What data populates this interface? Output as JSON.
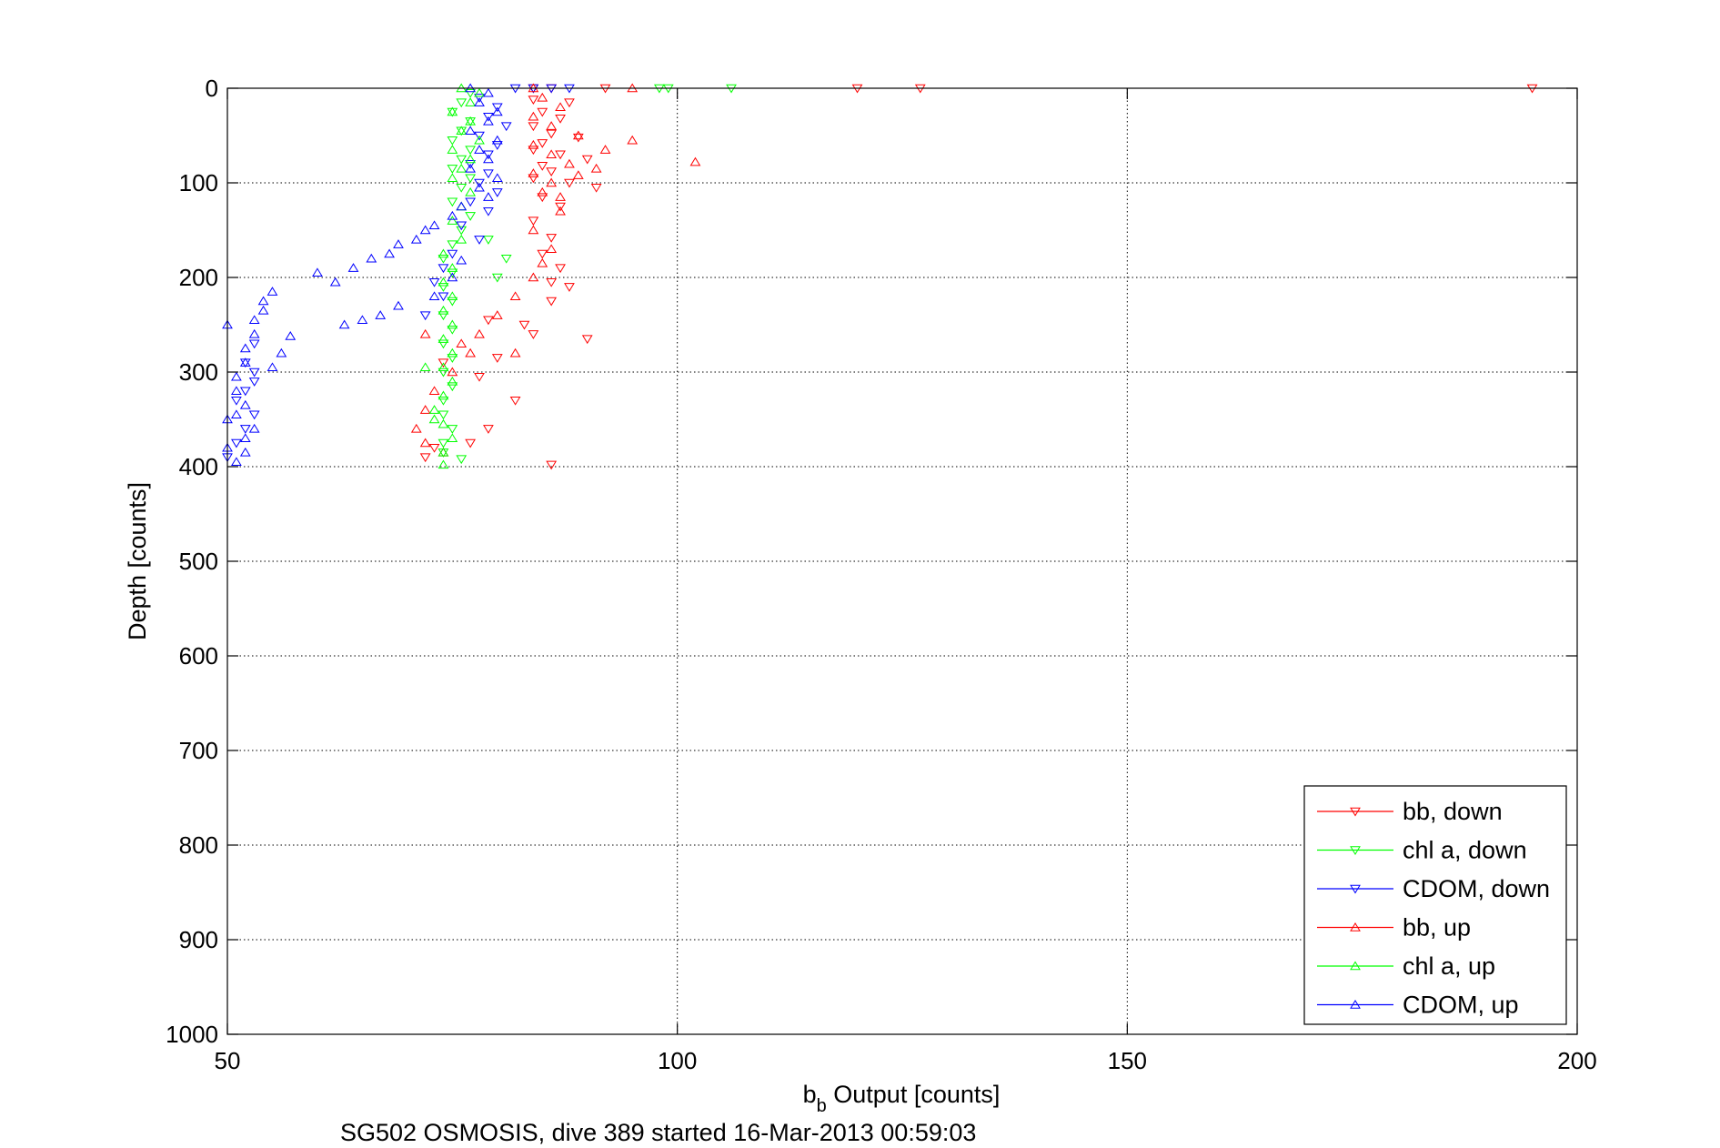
{
  "chart_data": {
    "type": "scatter",
    "title": "",
    "xlabel": "b",
    "xlabel_sub": "b",
    "xlabel_rest": " Output [counts]",
    "ylabel": "Depth [counts]",
    "caption": "SG502 OSMOSIS, dive 389 started 16-Mar-2013 00:59:03",
    "xlim": [
      50,
      200
    ],
    "ylim": [
      0,
      1000
    ],
    "y_reversed": true,
    "x_ticks": [
      "50",
      "100",
      "150",
      "200"
    ],
    "y_ticks": [
      "0",
      "100",
      "200",
      "300",
      "400",
      "500",
      "600",
      "700",
      "800",
      "900",
      "1000"
    ],
    "grid": true,
    "legend_position": "bottom-right",
    "series": [
      {
        "name": "bb, down",
        "color": "#ff0000",
        "marker": "triangle-down",
        "points": [
          [
            84,
            0
          ],
          [
            86,
            0
          ],
          [
            92,
            0
          ],
          [
            120,
            0
          ],
          [
            127,
            0
          ],
          [
            195,
            0
          ],
          [
            84,
            12
          ],
          [
            88,
            15
          ],
          [
            85,
            25
          ],
          [
            87,
            32
          ],
          [
            84,
            40
          ],
          [
            86,
            48
          ],
          [
            89,
            52
          ],
          [
            85,
            58
          ],
          [
            84,
            65
          ],
          [
            87,
            70
          ],
          [
            90,
            75
          ],
          [
            85,
            82
          ],
          [
            86,
            88
          ],
          [
            84,
            95
          ],
          [
            88,
            100
          ],
          [
            91,
            105
          ],
          [
            85,
            115
          ],
          [
            87,
            125
          ],
          [
            84,
            140
          ],
          [
            86,
            158
          ],
          [
            85,
            175
          ],
          [
            87,
            190
          ],
          [
            86,
            205
          ],
          [
            88,
            210
          ],
          [
            86,
            225
          ],
          [
            84,
            260
          ],
          [
            80,
            285
          ],
          [
            78,
            305
          ],
          [
            82,
            330
          ],
          [
            79,
            360
          ],
          [
            77,
            375
          ],
          [
            73,
            380
          ],
          [
            72,
            390
          ],
          [
            86,
            398
          ],
          [
            90,
            265
          ],
          [
            83,
            250
          ],
          [
            79,
            245
          ],
          [
            74,
            290
          ]
        ]
      },
      {
        "name": "chl a, down",
        "color": "#00ff00",
        "marker": "triangle-down",
        "points": [
          [
            98,
            0
          ],
          [
            99,
            0
          ],
          [
            106,
            0
          ],
          [
            77,
            5
          ],
          [
            76,
            15
          ],
          [
            75,
            25
          ],
          [
            77,
            35
          ],
          [
            76,
            45
          ],
          [
            75,
            55
          ],
          [
            77,
            65
          ],
          [
            76,
            75
          ],
          [
            75,
            85
          ],
          [
            77,
            95
          ],
          [
            76,
            105
          ],
          [
            75,
            120
          ],
          [
            77,
            135
          ],
          [
            76,
            150
          ],
          [
            75,
            165
          ],
          [
            74,
            180
          ],
          [
            75,
            195
          ],
          [
            74,
            210
          ],
          [
            75,
            225
          ],
          [
            74,
            240
          ],
          [
            75,
            255
          ],
          [
            74,
            270
          ],
          [
            75,
            285
          ],
          [
            74,
            300
          ],
          [
            75,
            315
          ],
          [
            74,
            330
          ],
          [
            74,
            345
          ],
          [
            75,
            360
          ],
          [
            74,
            375
          ],
          [
            74,
            385
          ],
          [
            76,
            392
          ],
          [
            79,
            160
          ],
          [
            81,
            180
          ],
          [
            80,
            200
          ]
        ]
      },
      {
        "name": "CDOM, down",
        "color": "#0000ff",
        "marker": "triangle-down",
        "points": [
          [
            82,
            0
          ],
          [
            84,
            0
          ],
          [
            86,
            0
          ],
          [
            88,
            0
          ],
          [
            78,
            10
          ],
          [
            80,
            20
          ],
          [
            79,
            30
          ],
          [
            81,
            40
          ],
          [
            78,
            50
          ],
          [
            80,
            60
          ],
          [
            79,
            70
          ],
          [
            77,
            80
          ],
          [
            79,
            90
          ],
          [
            78,
            100
          ],
          [
            80,
            110
          ],
          [
            77,
            120
          ],
          [
            79,
            130
          ],
          [
            76,
            145
          ],
          [
            78,
            160
          ],
          [
            75,
            175
          ],
          [
            74,
            190
          ],
          [
            73,
            205
          ],
          [
            74,
            220
          ],
          [
            72,
            240
          ],
          [
            53,
            270
          ],
          [
            52,
            290
          ],
          [
            53,
            310
          ],
          [
            51,
            330
          ],
          [
            53,
            345
          ],
          [
            52,
            360
          ],
          [
            51,
            375
          ],
          [
            50,
            390
          ],
          [
            53,
            300
          ],
          [
            52,
            320
          ]
        ]
      },
      {
        "name": "bb, up",
        "color": "#ff0000",
        "marker": "triangle-up",
        "points": [
          [
            84,
            0
          ],
          [
            95,
            0
          ],
          [
            85,
            10
          ],
          [
            87,
            20
          ],
          [
            84,
            30
          ],
          [
            86,
            40
          ],
          [
            89,
            50
          ],
          [
            84,
            60
          ],
          [
            86,
            70
          ],
          [
            88,
            80
          ],
          [
            91,
            85
          ],
          [
            102,
            78
          ],
          [
            84,
            90
          ],
          [
            86,
            100
          ],
          [
            85,
            110
          ],
          [
            87,
            130
          ],
          [
            84,
            150
          ],
          [
            86,
            170
          ],
          [
            85,
            185
          ],
          [
            84,
            200
          ],
          [
            82,
            220
          ],
          [
            80,
            240
          ],
          [
            78,
            260
          ],
          [
            77,
            280
          ],
          [
            75,
            300
          ],
          [
            73,
            320
          ],
          [
            72,
            340
          ],
          [
            71,
            360
          ],
          [
            72,
            375
          ],
          [
            74,
            385
          ],
          [
            72,
            260
          ],
          [
            76,
            270
          ],
          [
            82,
            280
          ],
          [
            95,
            55
          ],
          [
            92,
            65
          ],
          [
            89,
            92
          ],
          [
            87,
            115
          ]
        ]
      },
      {
        "name": "chl a, up",
        "color": "#00ff00",
        "marker": "triangle-up",
        "points": [
          [
            76,
            0
          ],
          [
            78,
            5
          ],
          [
            77,
            15
          ],
          [
            75,
            25
          ],
          [
            77,
            35
          ],
          [
            76,
            45
          ],
          [
            78,
            55
          ],
          [
            75,
            65
          ],
          [
            77,
            75
          ],
          [
            76,
            85
          ],
          [
            75,
            95
          ],
          [
            77,
            110
          ],
          [
            76,
            125
          ],
          [
            75,
            140
          ],
          [
            76,
            160
          ],
          [
            74,
            175
          ],
          [
            75,
            190
          ],
          [
            74,
            205
          ],
          [
            75,
            220
          ],
          [
            74,
            235
          ],
          [
            75,
            250
          ],
          [
            74,
            265
          ],
          [
            75,
            280
          ],
          [
            74,
            295
          ],
          [
            75,
            310
          ],
          [
            74,
            325
          ],
          [
            73,
            340
          ],
          [
            74,
            355
          ],
          [
            75,
            370
          ],
          [
            74,
            385
          ],
          [
            74,
            398
          ],
          [
            72,
            295
          ],
          [
            73,
            350
          ]
        ]
      },
      {
        "name": "CDOM, up",
        "color": "#0000ff",
        "marker": "triangle-up",
        "points": [
          [
            77,
            0
          ],
          [
            79,
            5
          ],
          [
            78,
            15
          ],
          [
            80,
            25
          ],
          [
            79,
            35
          ],
          [
            77,
            45
          ],
          [
            80,
            55
          ],
          [
            78,
            65
          ],
          [
            79,
            75
          ],
          [
            77,
            85
          ],
          [
            80,
            95
          ],
          [
            78,
            105
          ],
          [
            79,
            115
          ],
          [
            76,
            125
          ],
          [
            75,
            135
          ],
          [
            73,
            145
          ],
          [
            72,
            150
          ],
          [
            71,
            160
          ],
          [
            69,
            165
          ],
          [
            68,
            175
          ],
          [
            66,
            180
          ],
          [
            64,
            190
          ],
          [
            62,
            205
          ],
          [
            60,
            195
          ],
          [
            63,
            250
          ],
          [
            65,
            245
          ],
          [
            67,
            240
          ],
          [
            69,
            230
          ],
          [
            57,
            262
          ],
          [
            56,
            280
          ],
          [
            55,
            295
          ],
          [
            55,
            215
          ],
          [
            54,
            225
          ],
          [
            54,
            235
          ],
          [
            53,
            245
          ],
          [
            53,
            260
          ],
          [
            52,
            275
          ],
          [
            52,
            290
          ],
          [
            51,
            305
          ],
          [
            51,
            320
          ],
          [
            52,
            335
          ],
          [
            51,
            345
          ],
          [
            50,
            350
          ],
          [
            50,
            380
          ],
          [
            51,
            395
          ],
          [
            52,
            385
          ],
          [
            53,
            360
          ],
          [
            52,
            370
          ],
          [
            50,
            250
          ],
          [
            73,
            220
          ],
          [
            75,
            200
          ],
          [
            76,
            182
          ]
        ]
      }
    ]
  }
}
